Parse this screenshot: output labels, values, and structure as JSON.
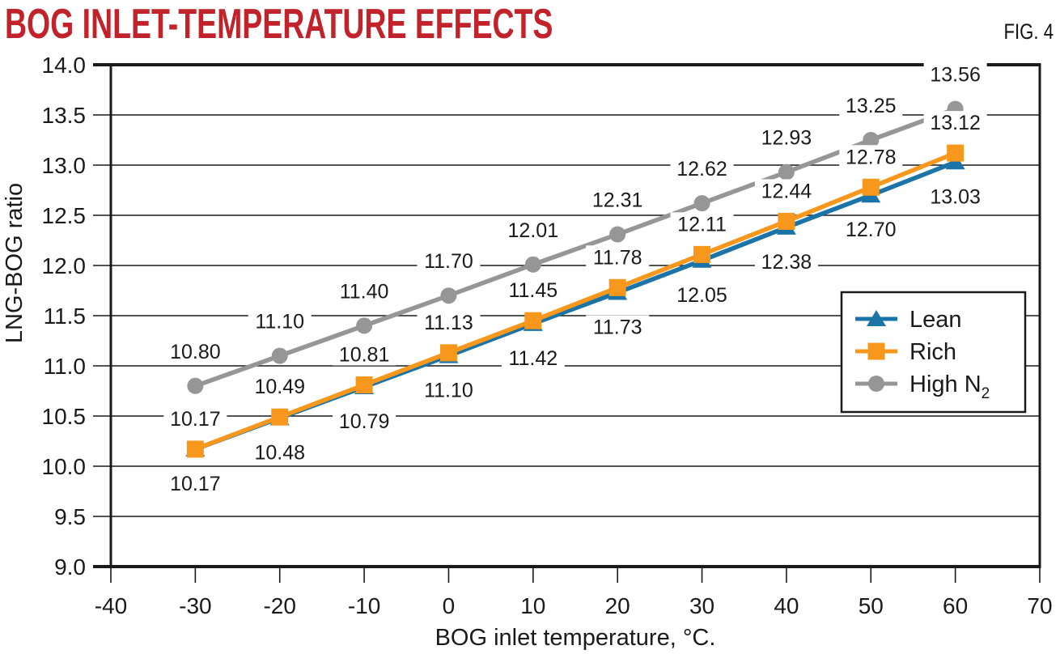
{
  "header": {
    "title": "BOG INLET-TEMPERATURE EFFECTS",
    "fig_label": "FIG. 4"
  },
  "chart_data": {
    "type": "line",
    "title": "BOG INLET-TEMPERATURE EFFECTS",
    "xlabel": "BOG inlet temperature, °C.",
    "ylabel": "LNG-BOG ratio",
    "xlim": [
      -40,
      70
    ],
    "xtick_step": 10,
    "ylim": [
      9.0,
      14.0
    ],
    "ytick_step": 0.5,
    "grid": "horizontal-gridlines",
    "legend_position": "middle-right",
    "x": [
      -30,
      -20,
      -10,
      0,
      10,
      20,
      30,
      40,
      50,
      60
    ],
    "series": [
      {
        "name": "Lean",
        "subscript": "",
        "marker": "triangle",
        "color": "#1b74a8",
        "label_side": "below",
        "values": [
          10.17,
          10.48,
          10.79,
          11.1,
          11.42,
          11.73,
          12.05,
          12.38,
          12.7,
          13.03
        ]
      },
      {
        "name": "Rich",
        "subscript": "",
        "marker": "square",
        "color": "#f7981d",
        "label_side": "above",
        "values": [
          10.17,
          10.49,
          10.81,
          11.13,
          11.45,
          11.78,
          12.11,
          12.44,
          12.78,
          13.12
        ]
      },
      {
        "name": "High N",
        "subscript": "2",
        "marker": "circle",
        "color": "#969696",
        "label_side": "above",
        "values": [
          10.8,
          11.1,
          11.4,
          11.7,
          12.01,
          12.31,
          12.62,
          12.93,
          13.25,
          13.56
        ]
      }
    ]
  },
  "colors": {
    "title_red": "#c2232b",
    "text": "#1a1a1a",
    "grid": "#1a1a1a",
    "background": "#ffffff"
  }
}
